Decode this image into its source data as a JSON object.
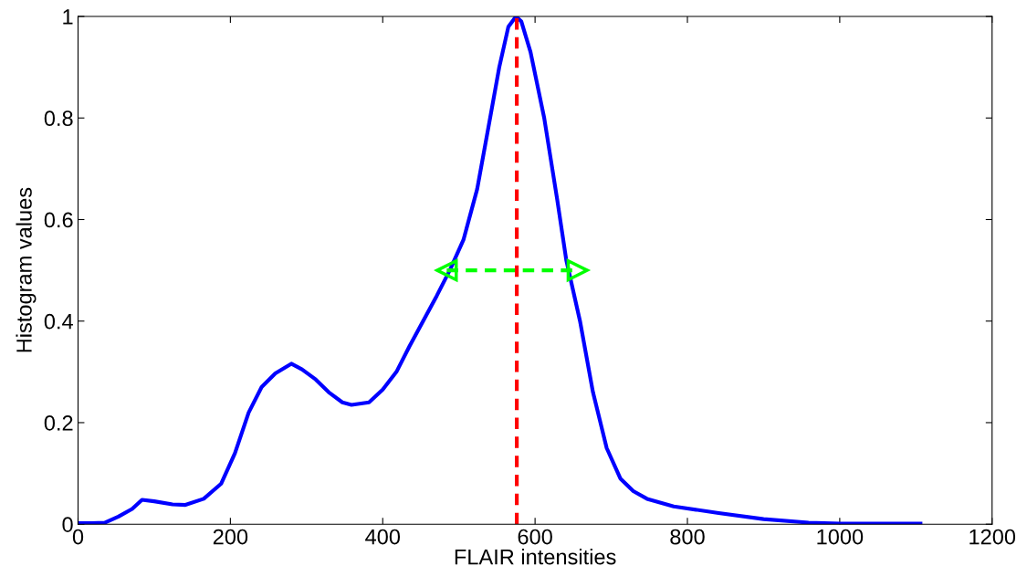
{
  "chart_data": {
    "type": "line",
    "xlabel": "FLAIR intensities",
    "ylabel": "Histogram values",
    "xlim": [
      0,
      1200
    ],
    "ylim": [
      0,
      1
    ],
    "xticks": [
      0,
      200,
      400,
      600,
      800,
      1000,
      1200
    ],
    "yticks": [
      0,
      0.2,
      0.4,
      0.6,
      0.8,
      1
    ],
    "grid": false,
    "legend": false,
    "series": [
      {
        "color": "#0000ff",
        "line_style": "solid",
        "marker": "none",
        "x": [
          0,
          18,
          35,
          53,
          71,
          84,
          100,
          124,
          141,
          165,
          188,
          206,
          224,
          241,
          259,
          280,
          294,
          312,
          329,
          347,
          359,
          382,
          400,
          418,
          435,
          453,
          471,
          488,
          506,
          524,
          541,
          553,
          565,
          575,
          582,
          594,
          612,
          629,
          641,
          659,
          676,
          694,
          712,
          729,
          747,
          782,
          841,
          900,
          959,
          1000,
          1106
        ],
        "values": [
          0.002,
          0.002,
          0.003,
          0.015,
          0.03,
          0.048,
          0.045,
          0.039,
          0.038,
          0.05,
          0.08,
          0.14,
          0.22,
          0.27,
          0.297,
          0.316,
          0.305,
          0.285,
          0.26,
          0.24,
          0.235,
          0.24,
          0.265,
          0.3,
          0.35,
          0.4,
          0.45,
          0.5,
          0.56,
          0.66,
          0.8,
          0.9,
          0.98,
          1.0,
          0.99,
          0.93,
          0.8,
          0.64,
          0.52,
          0.4,
          0.26,
          0.15,
          0.09,
          0.065,
          0.05,
          0.035,
          0.022,
          0.01,
          0.003,
          0.001,
          0.001
        ]
      },
      {
        "color": "#00ff00",
        "line_style": "dashed",
        "marker": "triangle",
        "x": [
          484,
          656
        ],
        "values": [
          0.5,
          0.5
        ]
      }
    ],
    "ref_lines": [
      {
        "axis": "x",
        "value": 576,
        "color": "#ff0000",
        "line_style": "dashed"
      }
    ]
  }
}
